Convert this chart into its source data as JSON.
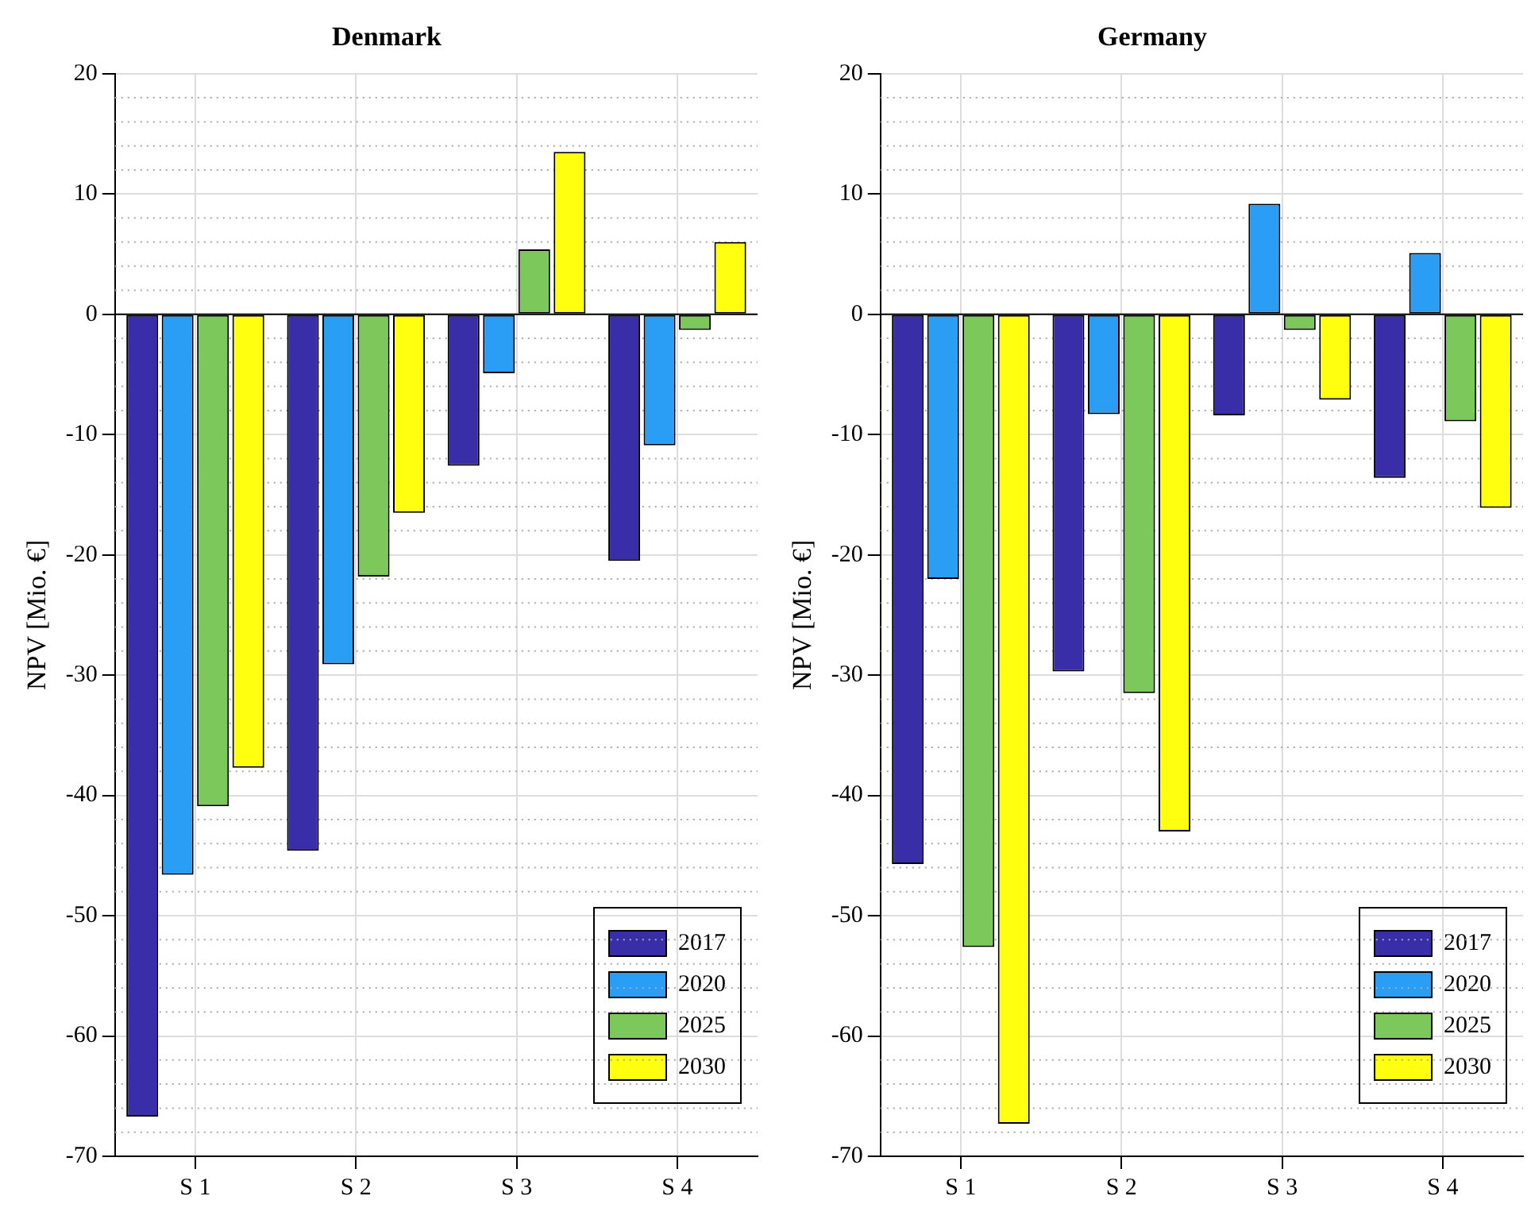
{
  "chart_data": [
    {
      "type": "bar",
      "title": "Denmark",
      "ylabel": "NPV [Mio. €]",
      "categories": [
        "S 1",
        "S 2",
        "S 3",
        "S 4"
      ],
      "ylim": [
        -70,
        20
      ],
      "yticks": [
        -70,
        -60,
        -50,
        -40,
        -30,
        -20,
        -10,
        0,
        10,
        20
      ],
      "grid": true,
      "legend": "bottom right",
      "series": [
        {
          "name": "2017",
          "color": "#3a2ea8",
          "values": [
            -66.7,
            -44.6,
            -12.6,
            -20.5
          ]
        },
        {
          "name": "2020",
          "color": "#2a9df4",
          "values": [
            -46.6,
            -29.1,
            -4.9,
            -10.9
          ]
        },
        {
          "name": "2025",
          "color": "#7cc85a",
          "values": [
            -40.9,
            -21.8,
            5.4,
            -1.3
          ]
        },
        {
          "name": "2030",
          "color": "#ffff10",
          "values": [
            -37.7,
            -16.5,
            13.5,
            6.0
          ]
        }
      ]
    },
    {
      "type": "bar",
      "title": "Germany",
      "ylabel": "NPV [Mio. €]",
      "categories": [
        "S 1",
        "S 2",
        "S 3",
        "S 4"
      ],
      "ylim": [
        -70,
        20
      ],
      "yticks": [
        -70,
        -60,
        -50,
        -40,
        -30,
        -20,
        -10,
        0,
        10,
        20
      ],
      "grid": true,
      "legend": "bottom right",
      "series": [
        {
          "name": "2017",
          "color": "#3a2ea8",
          "values": [
            -45.7,
            -29.7,
            -8.4,
            -13.6
          ]
        },
        {
          "name": "2020",
          "color": "#2a9df4",
          "values": [
            -22.0,
            -8.3,
            9.2,
            5.1
          ]
        },
        {
          "name": "2025",
          "color": "#7cc85a",
          "values": [
            -52.6,
            -31.5,
            -1.3,
            -8.9
          ]
        },
        {
          "name": "2030",
          "color": "#ffff10",
          "values": [
            -67.3,
            -43.0,
            -7.1,
            -16.1
          ]
        }
      ]
    }
  ]
}
